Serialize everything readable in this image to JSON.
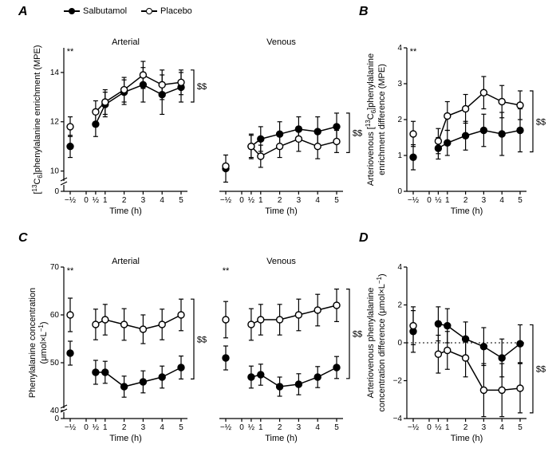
{
  "legend": {
    "items": [
      {
        "label": "Salbutamol",
        "marker": "filled"
      },
      {
        "label": "Placebo",
        "marker": "open"
      }
    ]
  },
  "colors": {
    "black": "#000000",
    "white": "#ffffff",
    "background": "#ffffff"
  },
  "panels": {
    "A": {
      "label": "A",
      "type": "line",
      "has_two_subplots": true,
      "subplot_titles": [
        "Arterial",
        "Venous"
      ],
      "ylabel": "[13C6]phenylalanine enrichment (MPE)",
      "xlabel": "Time (h)",
      "xticks": [
        "−½",
        "0",
        "½",
        "1",
        "2",
        "3",
        "4",
        "5"
      ],
      "xvalues": [
        -0.5,
        0,
        0.5,
        1,
        2,
        3,
        4,
        5
      ],
      "ylim": [
        9.5,
        15
      ],
      "yticks": [
        10,
        12,
        14
      ],
      "y_break": true,
      "y_break_pos": 10,
      "marker_size": 8,
      "line_width": 1.5,
      "subplots": [
        {
          "title": "Arterial",
          "sig_left": "**",
          "sig_right": "$$",
          "series": [
            {
              "name": "Salbutamol",
              "marker": "filled",
              "x": [
                -0.5,
                0.5,
                1,
                2,
                3,
                4,
                5
              ],
              "y": [
                11.0,
                11.9,
                12.7,
                13.2,
                13.5,
                13.1,
                13.4
              ],
              "err": [
                0.45,
                0.5,
                0.5,
                0.5,
                0.7,
                0.8,
                0.6
              ]
            },
            {
              "name": "Placebo",
              "marker": "open",
              "x": [
                -0.5,
                0.5,
                1,
                2,
                3,
                4,
                5
              ],
              "y": [
                11.8,
                12.4,
                12.8,
                13.3,
                13.9,
                13.5,
                13.6
              ],
              "err": [
                0.4,
                0.45,
                0.5,
                0.5,
                0.55,
                0.6,
                0.5
              ]
            }
          ]
        },
        {
          "title": "Venous",
          "sig_right": "$$",
          "series": [
            {
              "name": "Salbutamol",
              "marker": "filled",
              "x": [
                -0.5,
                0.5,
                1,
                2,
                3,
                4,
                5
              ],
              "y": [
                10.1,
                11.0,
                11.3,
                11.5,
                11.7,
                11.6,
                11.8
              ],
              "err": [
                0.55,
                0.5,
                0.5,
                0.5,
                0.5,
                0.6,
                0.55
              ]
            },
            {
              "name": "Placebo",
              "marker": "open",
              "x": [
                -0.5,
                0.5,
                1,
                2,
                3,
                4,
                5
              ],
              "y": [
                10.2,
                11.0,
                10.6,
                11.0,
                11.3,
                11.0,
                11.2
              ],
              "err": [
                0,
                0.45,
                0.45,
                0.45,
                0.5,
                0.5,
                0.45
              ]
            }
          ]
        }
      ]
    },
    "B": {
      "label": "B",
      "type": "line",
      "ylabel": "Arteriovenous [13C6]phenylalanine enrichment difference (MPE)",
      "xlabel": "Time (h)",
      "xticks": [
        "−½",
        "0",
        "½",
        "1",
        "2",
        "3",
        "4",
        "5"
      ],
      "xvalues": [
        -0.5,
        0,
        0.5,
        1,
        2,
        3,
        4,
        5
      ],
      "ylim": [
        0,
        4
      ],
      "yticks": [
        0,
        1,
        2,
        3,
        4
      ],
      "marker_size": 8,
      "line_width": 1.5,
      "sig_left": "**",
      "sig_right": "$$",
      "series": [
        {
          "name": "Salbutamol",
          "marker": "filled",
          "x": [
            -0.5,
            0.5,
            1,
            2,
            3,
            4,
            5
          ],
          "y": [
            0.95,
            1.2,
            1.35,
            1.55,
            1.7,
            1.6,
            1.7
          ],
          "err": [
            0.35,
            0.3,
            0.35,
            0.4,
            0.45,
            0.6,
            0.6
          ]
        },
        {
          "name": "Placebo",
          "marker": "open",
          "x": [
            -0.5,
            0.5,
            1,
            2,
            3,
            4,
            5
          ],
          "y": [
            1.6,
            1.4,
            2.1,
            2.3,
            2.75,
            2.5,
            2.4
          ],
          "err": [
            0.35,
            0.35,
            0.4,
            0.4,
            0.45,
            0.45,
            0.4
          ]
        }
      ]
    },
    "C": {
      "label": "C",
      "type": "line",
      "has_two_subplots": true,
      "subplot_titles": [
        "Arterial",
        "Venous"
      ],
      "ylabel": "Phenylalanine concentration (μmol×L−1)",
      "xlabel": "Time (h)",
      "xticks": [
        "−½",
        "0",
        "½",
        "1",
        "2",
        "3",
        "4",
        "5"
      ],
      "xvalues": [
        -0.5,
        0,
        0.5,
        1,
        2,
        3,
        4,
        5
      ],
      "ylim": [
        40,
        70
      ],
      "yticks": [
        40,
        50,
        60,
        70
      ],
      "y_break": true,
      "y_break_pos": 40,
      "marker_size": 8,
      "line_width": 1.5,
      "subplots": [
        {
          "title": "Arterial",
          "sig_left": "**",
          "sig_right": "$$",
          "series": [
            {
              "name": "Salbutamol",
              "marker": "filled",
              "x": [
                -0.5,
                0.5,
                1,
                2,
                3,
                4,
                5
              ],
              "y": [
                52,
                48,
                48,
                45,
                46,
                47,
                49
              ],
              "err": [
                2.5,
                2.5,
                2.3,
                2.2,
                2.3,
                2.3,
                2.4
              ]
            },
            {
              "name": "Placebo",
              "marker": "open",
              "x": [
                -0.5,
                0.5,
                1,
                2,
                3,
                4,
                5
              ],
              "y": [
                60,
                58,
                59,
                58,
                57,
                58,
                60
              ],
              "err": [
                3.5,
                3.2,
                3.2,
                3.3,
                3.0,
                3.2,
                3.3
              ]
            }
          ]
        },
        {
          "title": "Venous",
          "sig_left": "**",
          "sig_right": "$$",
          "series": [
            {
              "name": "Salbutamol",
              "marker": "filled",
              "x": [
                -0.5,
                0.5,
                1,
                2,
                3,
                4,
                5
              ],
              "y": [
                51,
                47,
                47.5,
                45,
                45.5,
                47,
                49
              ],
              "err": [
                2.5,
                2.3,
                2.2,
                2.0,
                2.2,
                2.2,
                2.3
              ]
            },
            {
              "name": "Placebo",
              "marker": "open",
              "x": [
                -0.5,
                0.5,
                1,
                2,
                3,
                4,
                5
              ],
              "y": [
                59,
                58,
                59,
                59,
                60,
                61,
                62
              ],
              "err": [
                3.8,
                3.3,
                3.2,
                3.2,
                3.3,
                3.3,
                3.4
              ]
            }
          ]
        }
      ]
    },
    "D": {
      "label": "D",
      "type": "line",
      "ylabel": "Arteriovenous phenylalanine concentration difference (μmol×L−1)",
      "xlabel": "Time (h)",
      "xticks": [
        "−½",
        "0",
        "½",
        "1",
        "2",
        "3",
        "4",
        "5"
      ],
      "xvalues": [
        -0.5,
        0,
        0.5,
        1,
        2,
        3,
        4,
        5
      ],
      "ylim": [
        -4,
        4
      ],
      "yticks": [
        -4,
        -2,
        0,
        2,
        4
      ],
      "zero_line": true,
      "marker_size": 8,
      "line_width": 1.5,
      "sig_right": "$$",
      "series": [
        {
          "name": "Salbutamol",
          "marker": "filled",
          "x": [
            -0.5,
            0.5,
            1,
            2,
            3,
            4,
            5
          ],
          "y": [
            0.6,
            1.0,
            0.9,
            0.2,
            -0.2,
            -0.8,
            -0.05
          ],
          "err": [
            1.1,
            0.9,
            0.9,
            0.9,
            1.0,
            1.0,
            1.0
          ]
        },
        {
          "name": "Placebo",
          "marker": "open",
          "x": [
            -0.5,
            0.5,
            1,
            2,
            3,
            4,
            5
          ],
          "y": [
            0.9,
            -0.6,
            -0.4,
            -0.8,
            -2.5,
            -2.5,
            -2.4
          ],
          "err": [
            1.0,
            1.0,
            1.0,
            1.0,
            1.4,
            1.4,
            1.3
          ]
        }
      ]
    }
  },
  "layout": {
    "panel_label_fontsize": 16,
    "axis_label_fontsize": 11,
    "tick_label_fontsize": 10
  }
}
